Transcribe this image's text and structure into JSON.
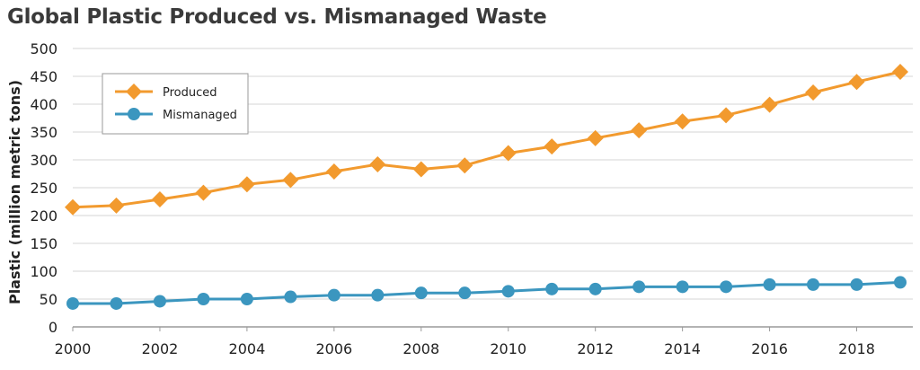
{
  "chart_data": {
    "type": "line",
    "title": "Global Plastic Produced vs. Mismanaged Waste",
    "xlabel": "",
    "ylabel": "Plastic (million metric tons)",
    "x": [
      2000,
      2001,
      2002,
      2003,
      2004,
      2005,
      2006,
      2007,
      2008,
      2009,
      2010,
      2011,
      2012,
      2013,
      2014,
      2015,
      2016,
      2017,
      2018,
      2019
    ],
    "x_ticks": [
      "2000",
      "2002",
      "2004",
      "2006",
      "2008",
      "2010",
      "2012",
      "2014",
      "2016",
      "2018"
    ],
    "y_ticks": [
      "0",
      "50",
      "100",
      "150",
      "200",
      "250",
      "300",
      "350",
      "400",
      "450",
      "500"
    ],
    "ylim": [
      0,
      500
    ],
    "grid": "horizontal",
    "legend_position": "top-left",
    "series": [
      {
        "name": "Produced",
        "color": "#f29a2e",
        "marker": "diamond",
        "values": [
          215,
          218,
          229,
          241,
          256,
          264,
          279,
          292,
          283,
          290,
          312,
          324,
          339,
          353,
          369,
          380,
          399,
          421,
          440,
          458
        ]
      },
      {
        "name": "Mismanaged",
        "color": "#3b96bf",
        "marker": "circle",
        "values": [
          42,
          42,
          46,
          50,
          50,
          54,
          57,
          57,
          61,
          61,
          64,
          68,
          68,
          72,
          72,
          72,
          76,
          76,
          76,
          80
        ]
      }
    ]
  }
}
